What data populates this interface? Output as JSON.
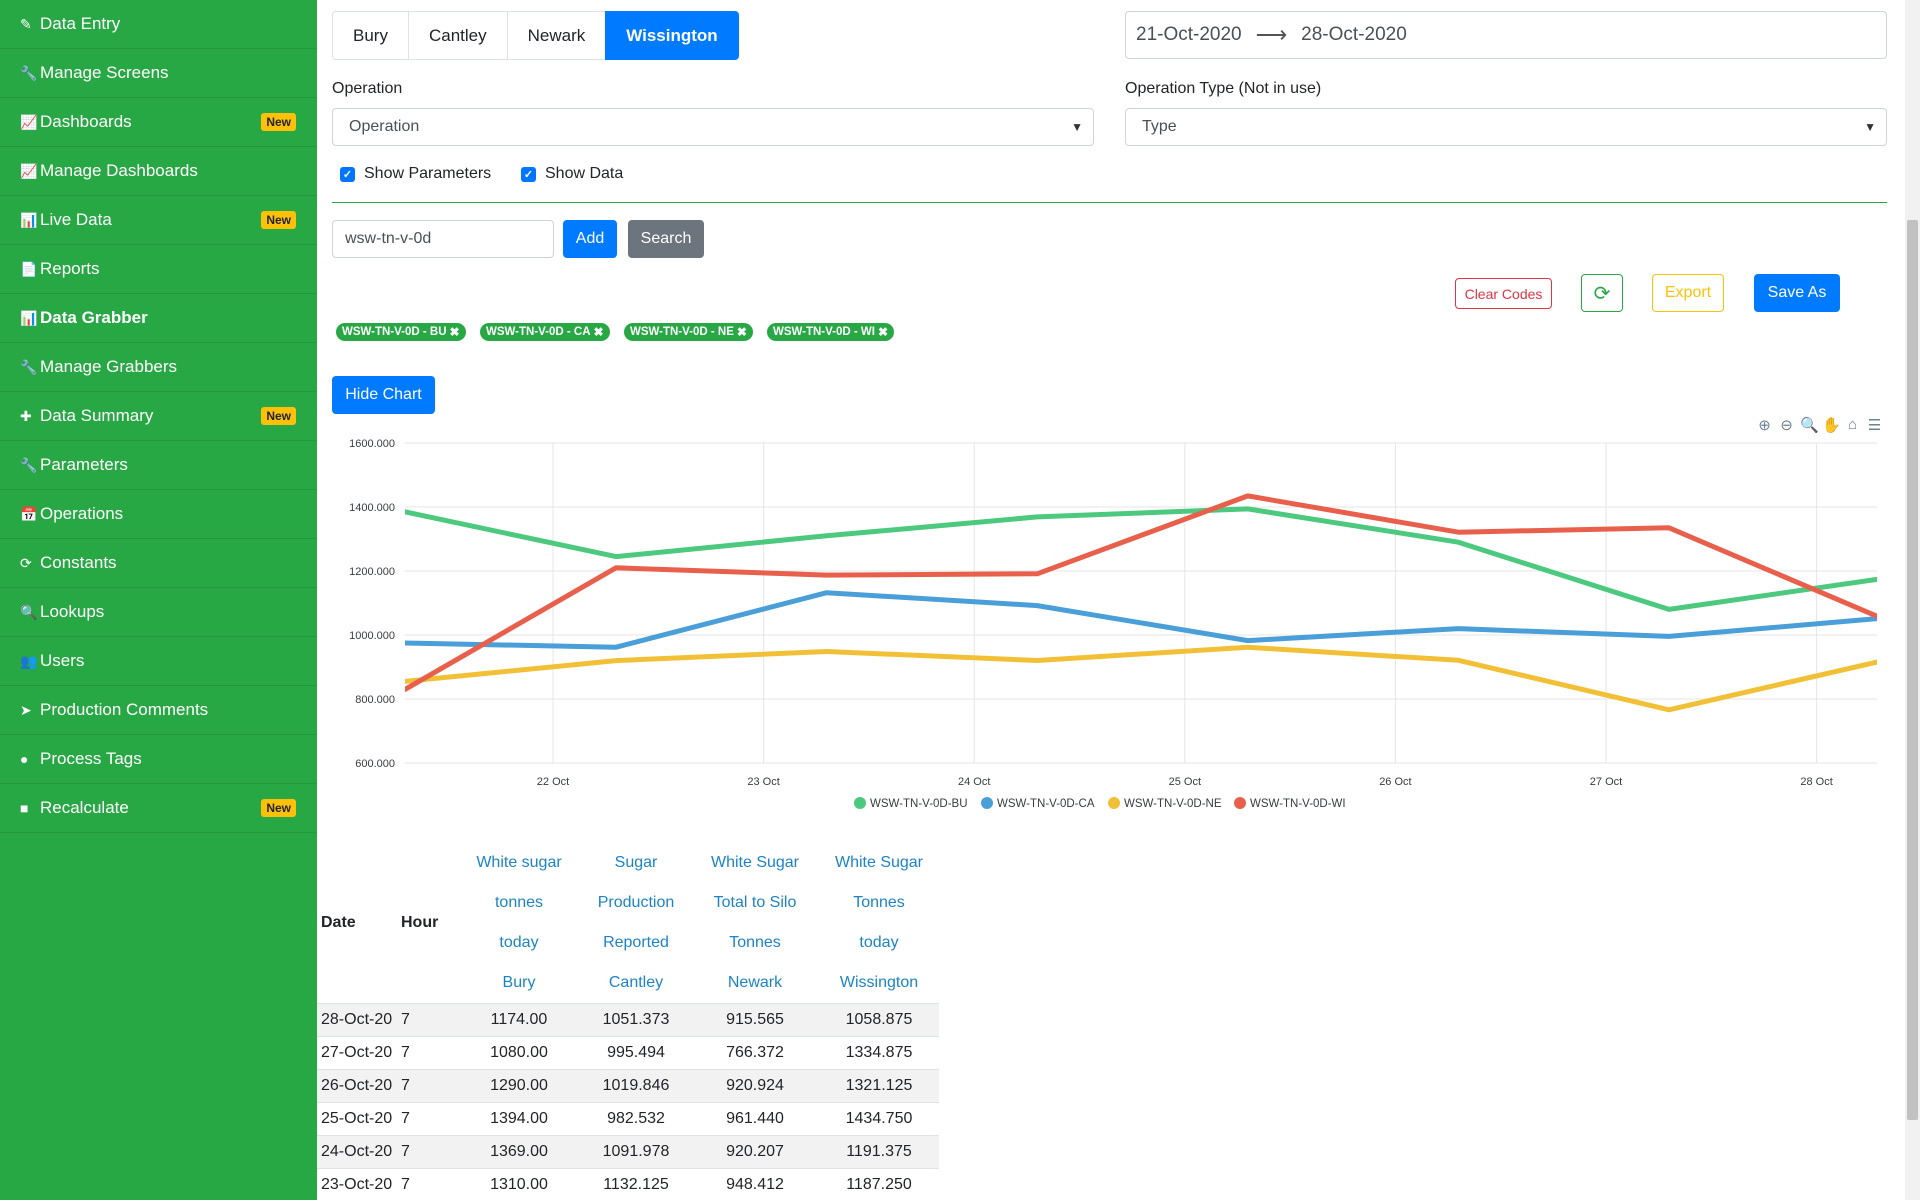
{
  "sidebar": {
    "items": [
      {
        "label": "Data Entry",
        "icon": "leaf-icon",
        "glyph": "✎",
        "badge": ""
      },
      {
        "label": "Manage Screens",
        "icon": "wrench-icon",
        "glyph": "🔧",
        "badge": ""
      },
      {
        "label": "Dashboards",
        "icon": "line-chart-icon",
        "glyph": "📈",
        "badge": "New"
      },
      {
        "label": "Manage Dashboards",
        "icon": "line-chart-icon",
        "glyph": "📈",
        "badge": ""
      },
      {
        "label": "Live Data",
        "icon": "bar-chart-icon",
        "glyph": "📊",
        "badge": "New"
      },
      {
        "label": "Reports",
        "icon": "file-icon",
        "glyph": "📄",
        "badge": ""
      },
      {
        "label": "Data Grabber",
        "icon": "bar-chart-icon",
        "glyph": "📊",
        "badge": "",
        "active": true
      },
      {
        "label": "Manage Grabbers",
        "icon": "wrench-icon",
        "glyph": "🔧",
        "badge": ""
      },
      {
        "label": "Data Summary",
        "icon": "plus-icon",
        "glyph": "✚",
        "badge": "New"
      },
      {
        "label": "Parameters",
        "icon": "wrench-icon",
        "glyph": "🔧",
        "badge": ""
      },
      {
        "label": "Operations",
        "icon": "calendar-icon",
        "glyph": "📅",
        "badge": ""
      },
      {
        "label": "Constants",
        "icon": "refresh-icon",
        "glyph": "⟳",
        "badge": ""
      },
      {
        "label": "Lookups",
        "icon": "search-icon",
        "glyph": "🔍",
        "badge": ""
      },
      {
        "label": "Users",
        "icon": "users-icon",
        "glyph": "👥",
        "badge": ""
      },
      {
        "label": "Production Comments",
        "icon": "paper-plane-icon",
        "glyph": "➤",
        "badge": ""
      },
      {
        "label": "Process Tags",
        "icon": "circle-icon",
        "glyph": "●",
        "badge": ""
      },
      {
        "label": "Recalculate",
        "icon": "square-icon",
        "glyph": "■",
        "badge": "New"
      }
    ]
  },
  "sites": [
    "Bury",
    "Cantley",
    "Newark",
    "Wissington"
  ],
  "active_site": "Wissington",
  "date_range": {
    "start": "21-Oct-2020",
    "end": "28-Oct-2020"
  },
  "operation": {
    "label": "Operation",
    "value": "Operation"
  },
  "operation_type": {
    "label": "Operation Type (Not in use)",
    "value": "Type"
  },
  "checkboxes": {
    "show_parameters": "Show Parameters",
    "show_data": "Show Data"
  },
  "search": {
    "value": "wsw-tn-v-0d"
  },
  "buttons": {
    "add": "Add",
    "search": "Search",
    "clear_codes": "Clear Codes",
    "export": "Export",
    "save_as": "Save As",
    "hide_chart": "Hide Chart"
  },
  "tags": [
    "WSW-TN-V-0D - BU",
    "WSW-TN-V-0D - CA",
    "WSW-TN-V-0D - NE",
    "WSW-TN-V-0D - WI"
  ],
  "chart_data": {
    "type": "line",
    "x": [
      "21-Oct-20",
      "22-Oct-20",
      "23-Oct-20",
      "24-Oct-20",
      "25-Oct-20",
      "26-Oct-20",
      "27-Oct-20",
      "28-Oct-20"
    ],
    "x_tick_labels": [
      "22 Oct",
      "23 Oct",
      "24 Oct",
      "25 Oct",
      "26 Oct",
      "27 Oct",
      "28 Oct"
    ],
    "y_tick_labels": [
      "1600.000",
      "1400.000",
      "1200.000",
      "1000.000",
      "800.000",
      "600.000"
    ],
    "ylim": [
      600,
      1600
    ],
    "grid": true,
    "legend_position": "bottom",
    "series": [
      {
        "name": "WSW-TN-V-0D-BU",
        "color": "#4cc97e",
        "values": [
          1385,
          1245,
          1310,
          1369,
          1394,
          1290,
          1080,
          1174
        ]
      },
      {
        "name": "WSW-TN-V-0D-CA",
        "color": "#4a9fd8",
        "values": [
          975,
          962,
          1132.125,
          1091.978,
          982.532,
          1019.846,
          995.494,
          1051.373
        ]
      },
      {
        "name": "WSW-TN-V-0D-NE",
        "color": "#f2c037",
        "values": [
          855,
          920,
          948.412,
          920.207,
          961.44,
          920.924,
          766.372,
          915.565
        ]
      },
      {
        "name": "WSW-TN-V-0D-WI",
        "color": "#e8604c",
        "values": [
          830,
          1210,
          1187.25,
          1191.375,
          1434.75,
          1321.125,
          1334.875,
          1058.875
        ]
      }
    ]
  },
  "table": {
    "headers": [
      "Date",
      "Hour"
    ],
    "series_headers": [
      [
        "White sugar",
        "tonnes",
        "today",
        "Bury"
      ],
      [
        "Sugar",
        "Production",
        "Reported",
        "Cantley"
      ],
      [
        "White Sugar",
        "Total to Silo",
        "Tonnes",
        "Newark"
      ],
      [
        "White Sugar",
        "Tonnes",
        "today",
        "Wissington"
      ]
    ],
    "rows": [
      [
        "28-Oct-20",
        "7",
        "1174.00",
        "1051.373",
        "915.565",
        "1058.875"
      ],
      [
        "27-Oct-20",
        "7",
        "1080.00",
        "995.494",
        "766.372",
        "1334.875"
      ],
      [
        "26-Oct-20",
        "7",
        "1290.00",
        "1019.846",
        "920.924",
        "1321.125"
      ],
      [
        "25-Oct-20",
        "7",
        "1394.00",
        "982.532",
        "961.440",
        "1434.750"
      ],
      [
        "24-Oct-20",
        "7",
        "1369.00",
        "1091.978",
        "920.207",
        "1191.375"
      ],
      [
        "23-Oct-20",
        "7",
        "1310.00",
        "1132.125",
        "948.412",
        "1187.250"
      ]
    ]
  }
}
